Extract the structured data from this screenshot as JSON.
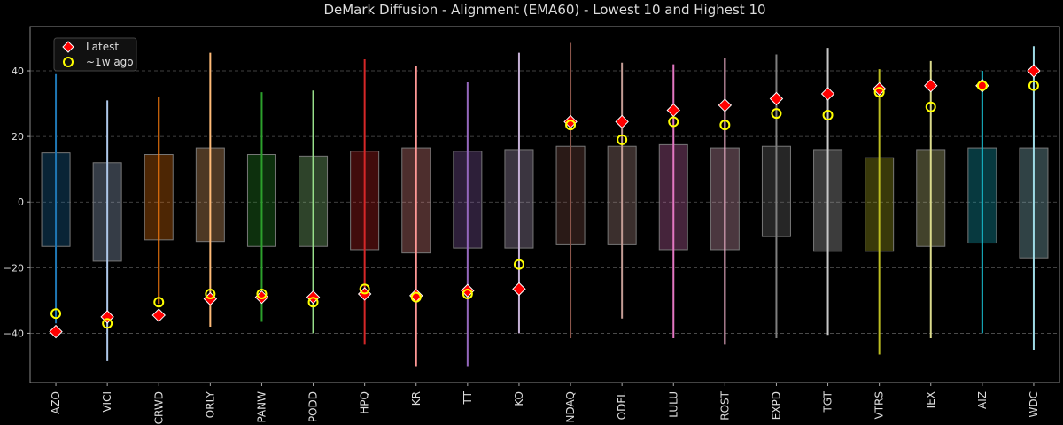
{
  "chart_data": {
    "type": "range-box-scatter",
    "title": "DeMark Diffusion - Alignment (EMA60) - Lowest 10 and Highest 10",
    "xlabel": "",
    "ylabel": "",
    "ylim": [
      -55,
      53.5
    ],
    "yticks": [
      -40,
      -20,
      0,
      20,
      40
    ],
    "grid": "horizontal dashed",
    "legend": {
      "placement": "top-left",
      "entries": [
        "Latest",
        "~1w ago"
      ]
    },
    "marker_colors": {
      "latest": "#ff0000",
      "week_ago": "#ffff00"
    },
    "categories": [
      "AZO",
      "VICI",
      "CRWD",
      "ORLY",
      "PANW",
      "PODD",
      "HPQ",
      "KR",
      "TT",
      "KO",
      "NDAQ",
      "ODFL",
      "LULU",
      "ROST",
      "EXPD",
      "TGT",
      "VTRS",
      "IEX",
      "AIZ",
      "WDC"
    ],
    "colors": [
      "#1f77b4",
      "#aec7e8",
      "#ff7f0e",
      "#ffbb78",
      "#2ca02c",
      "#98df8a",
      "#d62728",
      "#ff9896",
      "#9467bd",
      "#c5b0d5",
      "#8c564b",
      "#c49c94",
      "#e377c2",
      "#f7b6d2",
      "#7f7f7f",
      "#c7c7c7",
      "#bcbd22",
      "#dbdb8d",
      "#17becf",
      "#9edae5"
    ],
    "range_max": [
      39,
      31,
      32,
      45.5,
      33.5,
      34,
      43.5,
      41.5,
      36.5,
      45.5,
      48.5,
      42.5,
      42,
      44,
      45,
      47,
      40.5,
      43,
      40,
      47.5
    ],
    "range_min": [
      -37,
      -48.5,
      -31,
      -38,
      -36.5,
      -40,
      -43.5,
      -50,
      -50,
      -40,
      -41.5,
      -35.5,
      -41.5,
      -43.5,
      -41.5,
      -40.5,
      -46.5,
      -41.5,
      -40,
      -45
    ],
    "box_high": [
      15,
      12,
      14.5,
      16.5,
      14.5,
      14,
      15.5,
      16.5,
      15.5,
      16,
      17,
      17,
      17.5,
      16.5,
      17,
      16,
      13.5,
      16,
      16.5,
      16.5
    ],
    "box_low": [
      -13.5,
      -18,
      -11.5,
      -12,
      -13.5,
      -13.5,
      -14.5,
      -15.5,
      -14,
      -14,
      -13,
      -13,
      -14.5,
      -14.5,
      -10.5,
      -15,
      -15,
      -13.5,
      -12.5,
      -17
    ],
    "series": [
      {
        "name": "Latest",
        "values": [
          -39.5,
          -35,
          -34.5,
          -29.5,
          -29,
          -29,
          -28,
          -28.5,
          -27,
          -26.5,
          24.5,
          24.5,
          28,
          29.5,
          31.5,
          33,
          34.5,
          35.5,
          35.5,
          40
        ]
      },
      {
        "name": "~1w ago",
        "values": [
          -34,
          -37,
          -30.5,
          -28,
          -28,
          -30.5,
          -26.5,
          -29,
          -28,
          -19,
          23.5,
          19,
          24.5,
          23.5,
          27,
          26.5,
          33.5,
          29,
          35.5,
          35.5
        ]
      }
    ]
  }
}
